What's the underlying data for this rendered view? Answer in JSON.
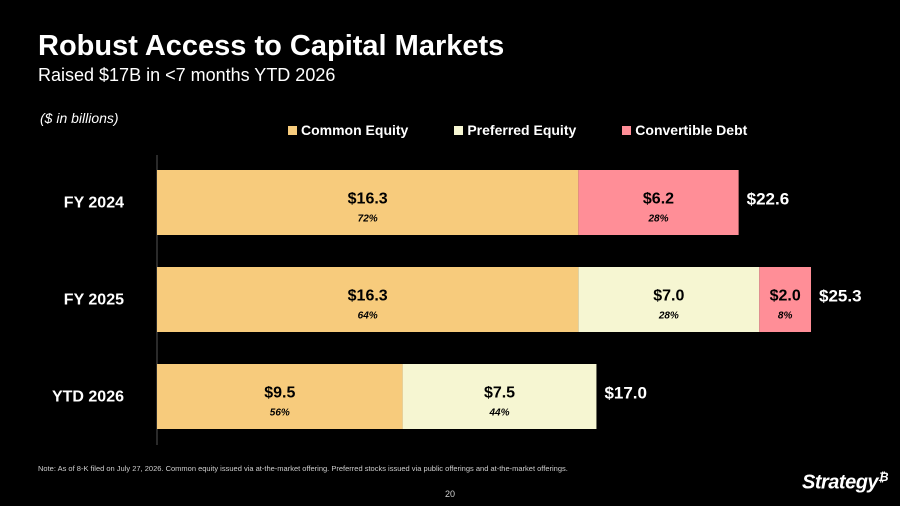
{
  "header": {
    "title": "Robust Access to Capital Markets",
    "subtitle": "Raised $17B in <7 months YTD 2026"
  },
  "chart_data": {
    "type": "bar",
    "orientation": "horizontal",
    "stacked": true,
    "units_note": "($ in billions)",
    "categories": [
      "FY 2024",
      "FY 2025",
      "YTD 2026"
    ],
    "totals": [
      22.6,
      25.3,
      17.0
    ],
    "total_labels": [
      "$22.6",
      "$25.3",
      "$17.0"
    ],
    "series": [
      {
        "name": "Common Equity",
        "color": "#F7CB7C",
        "values": [
          16.3,
          16.3,
          9.5
        ],
        "value_labels": [
          "$16.3",
          "$16.3",
          "$9.5"
        ],
        "pct_labels": [
          "72%",
          "64%",
          "56%"
        ]
      },
      {
        "name": "Preferred Equity",
        "color": "#F6F6D2",
        "values": [
          0,
          7.0,
          7.5
        ],
        "value_labels": [
          "",
          "$7.0",
          "$7.5"
        ],
        "pct_labels": [
          "",
          "28%",
          "44%"
        ]
      },
      {
        "name": "Convertible Debt",
        "color": "#FF8E97",
        "values": [
          6.2,
          2.0,
          0
        ],
        "value_labels": [
          "$6.2",
          "$2.0",
          ""
        ],
        "pct_labels": [
          "28%",
          "8%",
          ""
        ]
      }
    ],
    "legend_position": "top",
    "grid": false
  },
  "footer": {
    "note": "Note: As of 8-K filed on July 27, 2026. Common equity issued via at-the-market offering. Preferred stocks issued via public offerings and at-the-market offerings.",
    "page_number": "20",
    "logo_text": "Strategy",
    "logo_mark": "₿"
  }
}
